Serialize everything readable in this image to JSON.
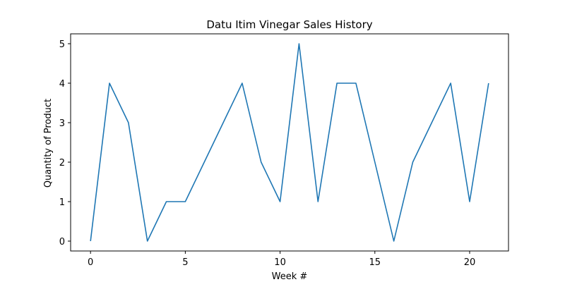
{
  "chart_data": {
    "type": "line",
    "title": "Datu Itim Vinegar Sales History",
    "xlabel": "Week #",
    "ylabel": "Quantity of Product",
    "x": [
      0,
      1,
      2,
      3,
      4,
      5,
      6,
      7,
      8,
      9,
      10,
      11,
      12,
      13,
      14,
      15,
      16,
      17,
      18,
      19,
      20,
      21
    ],
    "series": [
      {
        "values": [
          0,
          4,
          3,
          0,
          1,
          1,
          2,
          3,
          4,
          2,
          1,
          5,
          1,
          4,
          4,
          2,
          0,
          2,
          3,
          4,
          1,
          4
        ],
        "color": "#1f77b4"
      }
    ],
    "xlim": [
      -1.05,
      22.05
    ],
    "ylim": [
      -0.25,
      5.25
    ],
    "xticks": [
      0,
      5,
      10,
      15,
      20
    ],
    "yticks": [
      0,
      1,
      2,
      3,
      4,
      5
    ],
    "grid": false,
    "legend": "none"
  }
}
